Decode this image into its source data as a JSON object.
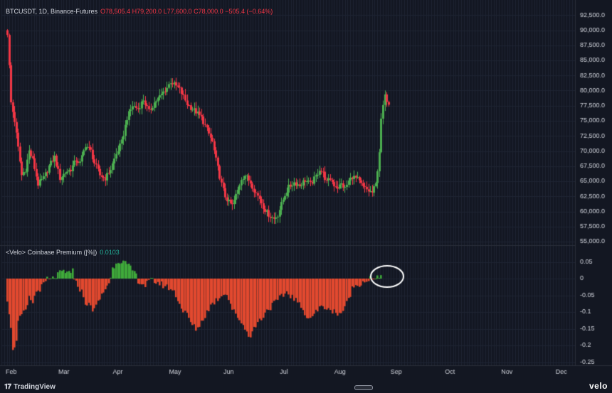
{
  "header": {
    "symbol": "BTCUSDT, 1D, Binance-Futures",
    "ohlc": "O78,505.4 H79,200.0 L77,600.0 C78,000.0 −505.4 (−0.64%)"
  },
  "indicator": {
    "label": "<Velo> Coinbase Premium (|%|)",
    "value": "0.0103"
  },
  "branding": {
    "tradingview": "TradingView",
    "velo": "velo"
  },
  "colors": {
    "background": "#131722",
    "up": "#4caf50",
    "down": "#f23645",
    "premium_up": "#3fa93a",
    "premium_down": "#e2492f",
    "grid": "#1e2433",
    "axis_text": "#d1d4dc",
    "highlight_circle": "#ffffff"
  },
  "chart_data": [
    {
      "type": "candlestick",
      "title": "BTCUSDT, 1D, Binance-Futures",
      "y_ticks": [
        "92,500.0",
        "90,000.0",
        "87,500.0",
        "85,000.0",
        "82,500.0",
        "80,000.0",
        "77,500.0",
        "75,000.0",
        "72,500.0",
        "70,000.0",
        "67,500.0",
        "65,000.0",
        "62,500.0",
        "60,000.0",
        "57,500.0",
        "55,000.0"
      ],
      "ylim": [
        55000,
        93000
      ],
      "x_ticks": [
        "Feb",
        "Mar",
        "Apr",
        "May",
        "Jun",
        "Jul",
        "Aug",
        "Sep",
        "Oct",
        "Nov",
        "Dec"
      ],
      "x_tick_days": [
        0,
        29,
        59,
        90,
        120,
        151,
        181,
        212,
        242,
        273,
        303
      ],
      "x_range_days": [
        0,
        316
      ],
      "close_anchors": [
        [
          0,
          89500
        ],
        [
          1,
          84000
        ],
        [
          2,
          78000
        ],
        [
          4,
          75000
        ],
        [
          6,
          70500
        ],
        [
          8,
          66000
        ],
        [
          10,
          67000
        ],
        [
          12,
          70000
        ],
        [
          14,
          68500
        ],
        [
          17,
          64500
        ],
        [
          20,
          65500
        ],
        [
          23,
          67500
        ],
        [
          26,
          69000
        ],
        [
          29,
          65500
        ],
        [
          32,
          66500
        ],
        [
          35,
          67000
        ],
        [
          38,
          68500
        ],
        [
          40,
          68000
        ],
        [
          43,
          71000
        ],
        [
          46,
          70000
        ],
        [
          48,
          68000
        ],
        [
          51,
          66000
        ],
        [
          54,
          65500
        ],
        [
          57,
          67000
        ],
        [
          60,
          69500
        ],
        [
          63,
          71500
        ],
        [
          66,
          75500
        ],
        [
          69,
          77500
        ],
        [
          72,
          77000
        ],
        [
          75,
          78500
        ],
        [
          78,
          76500
        ],
        [
          81,
          78000
        ],
        [
          84,
          79000
        ],
        [
          88,
          80500
        ],
        [
          90,
          81500
        ],
        [
          92,
          81000
        ],
        [
          95,
          80200
        ],
        [
          97,
          79000
        ],
        [
          99,
          77800
        ],
        [
          101,
          77200
        ],
        [
          104,
          76500
        ],
        [
          107,
          75500
        ],
        [
          110,
          73500
        ],
        [
          113,
          71500
        ],
        [
          115,
          68500
        ],
        [
          118,
          64500
        ],
        [
          120,
          62500
        ],
        [
          122,
          61500
        ],
        [
          124,
          61000
        ],
        [
          127,
          63500
        ],
        [
          129,
          65500
        ],
        [
          131,
          66000
        ],
        [
          134,
          64800
        ],
        [
          137,
          63000
        ],
        [
          139,
          62200
        ],
        [
          141,
          60800
        ],
        [
          143,
          59800
        ],
        [
          145,
          59200
        ],
        [
          147,
          58800
        ],
        [
          149,
          59500
        ],
        [
          151,
          61200
        ],
        [
          153,
          62800
        ],
        [
          155,
          64000
        ],
        [
          158,
          64800
        ],
        [
          161,
          64300
        ],
        [
          164,
          65200
        ],
        [
          167,
          64500
        ],
        [
          170,
          65800
        ],
        [
          172,
          67000
        ],
        [
          174,
          66300
        ],
        [
          176,
          64800
        ],
        [
          178,
          65400
        ],
        [
          180,
          64400
        ],
        [
          182,
          64000
        ],
        [
          184,
          64500
        ],
        [
          186,
          63800
        ],
        [
          188,
          65000
        ],
        [
          190,
          65800
        ],
        [
          193,
          65300
        ],
        [
          196,
          64000
        ],
        [
          199,
          63400
        ],
        [
          201,
          63100
        ],
        [
          203,
          64500
        ],
        [
          204,
          67000
        ],
        [
          205,
          70000
        ],
        [
          206,
          75000
        ],
        [
          207,
          77500
        ],
        [
          208,
          79000
        ],
        [
          209,
          78500
        ],
        [
          210,
          78000
        ]
      ],
      "note": "Close values read from the price axis; bars between anchors follow the same path."
    },
    {
      "type": "bar",
      "title": "<Velo> Coinbase Premium (|%|)",
      "y_ticks": [
        "0.05",
        "0",
        "-0.05",
        "-0.1",
        "-0.15",
        "-0.2",
        "-0.25"
      ],
      "ylim": [
        -0.25,
        0.05
      ],
      "last_value": 0.0103,
      "value_anchors": [
        [
          0,
          -0.06
        ],
        [
          2,
          -0.14
        ],
        [
          3,
          -0.22
        ],
        [
          4,
          -0.2
        ],
        [
          5,
          -0.18
        ],
        [
          6,
          -0.13
        ],
        [
          8,
          -0.11
        ],
        [
          10,
          -0.1
        ],
        [
          12,
          -0.06
        ],
        [
          14,
          -0.07
        ],
        [
          16,
          -0.04
        ],
        [
          18,
          -0.03
        ],
        [
          20,
          -0.02
        ],
        [
          22,
          0.0
        ],
        [
          24,
          -0.005
        ],
        [
          26,
          0.005
        ],
        [
          28,
          0.01
        ],
        [
          30,
          0.02
        ],
        [
          32,
          0.015
        ],
        [
          34,
          0.02
        ],
        [
          36,
          0.025
        ],
        [
          37,
          -0.01
        ],
        [
          39,
          -0.02
        ],
        [
          41,
          -0.04
        ],
        [
          43,
          -0.07
        ],
        [
          45,
          -0.08
        ],
        [
          47,
          -0.09
        ],
        [
          49,
          -0.085
        ],
        [
          51,
          -0.06
        ],
        [
          53,
          -0.04
        ],
        [
          55,
          -0.02
        ],
        [
          57,
          0.0
        ],
        [
          58,
          0.03
        ],
        [
          60,
          0.05
        ],
        [
          62,
          0.055
        ],
        [
          64,
          0.05
        ],
        [
          66,
          0.04
        ],
        [
          68,
          0.03
        ],
        [
          70,
          0.02
        ],
        [
          72,
          -0.005
        ],
        [
          74,
          -0.015
        ],
        [
          76,
          -0.02
        ],
        [
          78,
          -0.01
        ],
        [
          80,
          -0.005
        ],
        [
          82,
          -0.01
        ],
        [
          84,
          -0.015
        ],
        [
          86,
          -0.02
        ],
        [
          88,
          -0.025
        ],
        [
          90,
          -0.03
        ],
        [
          92,
          -0.04
        ],
        [
          94,
          -0.06
        ],
        [
          96,
          -0.09
        ],
        [
          98,
          -0.1
        ],
        [
          100,
          -0.12
        ],
        [
          102,
          -0.14
        ],
        [
          104,
          -0.15
        ],
        [
          106,
          -0.14
        ],
        [
          108,
          -0.12
        ],
        [
          110,
          -0.1
        ],
        [
          112,
          -0.08
        ],
        [
          114,
          -0.07
        ],
        [
          116,
          -0.06
        ],
        [
          118,
          -0.05
        ],
        [
          120,
          -0.04
        ],
        [
          122,
          -0.06
        ],
        [
          124,
          -0.09
        ],
        [
          126,
          -0.11
        ],
        [
          128,
          -0.12
        ],
        [
          130,
          -0.14
        ],
        [
          132,
          -0.16
        ],
        [
          134,
          -0.17
        ],
        [
          136,
          -0.15
        ],
        [
          138,
          -0.13
        ],
        [
          140,
          -0.12
        ],
        [
          142,
          -0.1
        ],
        [
          144,
          -0.09
        ],
        [
          146,
          -0.08
        ],
        [
          148,
          -0.07
        ],
        [
          150,
          -0.06
        ],
        [
          152,
          -0.05
        ],
        [
          154,
          -0.04
        ],
        [
          156,
          -0.05
        ],
        [
          158,
          -0.06
        ],
        [
          160,
          -0.07
        ],
        [
          162,
          -0.09
        ],
        [
          164,
          -0.1
        ],
        [
          166,
          -0.12
        ],
        [
          168,
          -0.11
        ],
        [
          170,
          -0.1
        ],
        [
          172,
          -0.09
        ],
        [
          174,
          -0.08
        ],
        [
          176,
          -0.09
        ],
        [
          178,
          -0.1
        ],
        [
          180,
          -0.09
        ],
        [
          182,
          -0.11
        ],
        [
          184,
          -0.1
        ],
        [
          186,
          -0.09
        ],
        [
          188,
          -0.06
        ],
        [
          190,
          -0.03
        ],
        [
          192,
          -0.02
        ],
        [
          194,
          -0.015
        ],
        [
          196,
          -0.01
        ],
        [
          198,
          -0.005
        ],
        [
          200,
          0.0
        ],
        [
          202,
          -0.005
        ],
        [
          204,
          0.0
        ],
        [
          206,
          0.0103
        ]
      ]
    }
  ]
}
